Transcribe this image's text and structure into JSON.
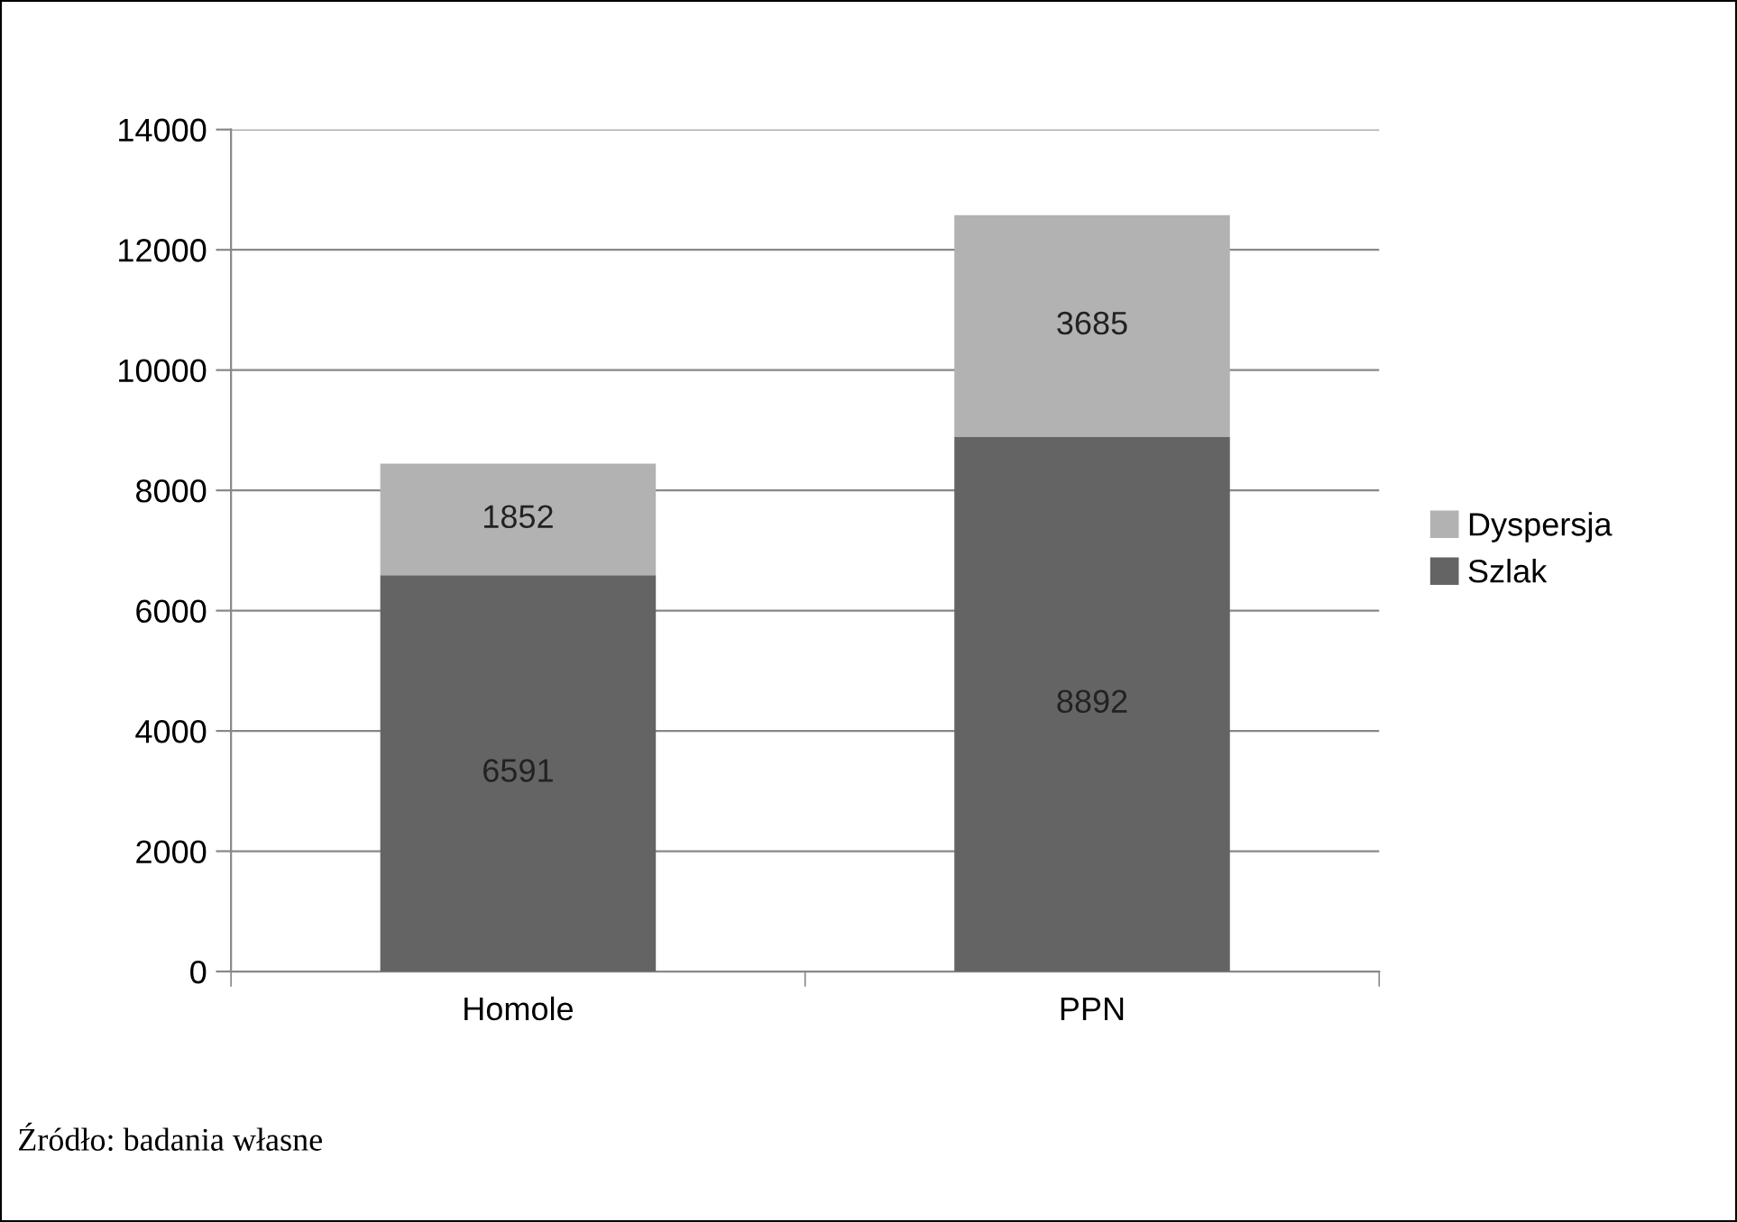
{
  "chart_data": {
    "type": "bar",
    "stacked": true,
    "categories": [
      "Homole",
      "PPN"
    ],
    "series": [
      {
        "name": "Szlak",
        "color": "#646464",
        "values": [
          6591,
          8892
        ]
      },
      {
        "name": "Dyspersja",
        "color": "#b2b2b2",
        "values": [
          1852,
          3685
        ]
      }
    ],
    "ylim": [
      0,
      14000
    ],
    "yticks": [
      0,
      2000,
      4000,
      6000,
      8000,
      10000,
      12000,
      14000
    ],
    "grid": "y",
    "legend": "right",
    "data_labels": true,
    "annotations": [
      "Źródło: badania własne"
    ]
  }
}
